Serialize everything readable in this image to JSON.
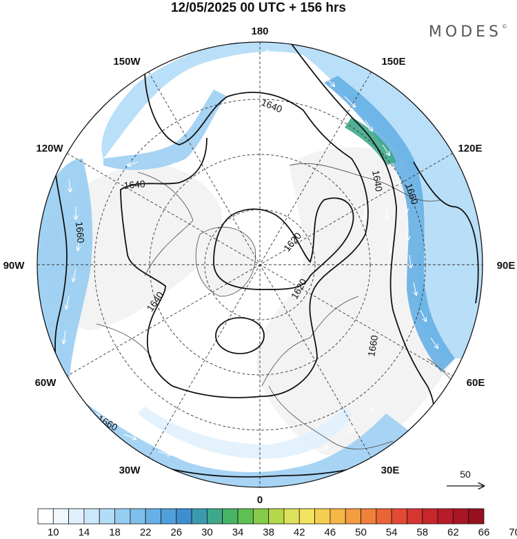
{
  "title": "12/05/2025  00 UTC  + 156 hrs",
  "brand": "MODES",
  "brand_mark": "©",
  "longitude_labels": [
    "180",
    "150E",
    "120E",
    "90E",
    "60E",
    "30E",
    "0",
    "30W",
    "60W",
    "90W",
    "120W",
    "150W"
  ],
  "contours": [
    {
      "label": "1640",
      "type": "upper-left"
    },
    {
      "label": "1640",
      "type": "left"
    },
    {
      "label": "1640",
      "type": "lower-left"
    },
    {
      "label": "1640",
      "type": "right"
    },
    {
      "label": "1660",
      "type": "left"
    },
    {
      "label": "1660",
      "type": "right"
    },
    {
      "label": "1660",
      "type": "lower-right"
    },
    {
      "label": "1660",
      "type": "bottom"
    },
    {
      "label": "1620",
      "type": "centre"
    },
    {
      "label": "1620",
      "type": "centre-low"
    }
  ],
  "reference_vector": "50",
  "colorbar": {
    "labels": [
      "10",
      "14",
      "18",
      "22",
      "26",
      "30",
      "34",
      "38",
      "42",
      "46",
      "50",
      "54",
      "58",
      "62",
      "66",
      "70"
    ],
    "colors": [
      "#ffffff",
      "#f0f8fe",
      "#e0f1fd",
      "#cce8fb",
      "#b3dcf7",
      "#98cdf2",
      "#7ebfec",
      "#66b0e5",
      "#4f9fdc",
      "#3f8ed1",
      "#3a9bb0",
      "#3fa88a",
      "#47b466",
      "#5ec050",
      "#86cc4a",
      "#b5d84a",
      "#dde05a",
      "#f3e35e",
      "#f5cf52",
      "#f5b748",
      "#f39c40",
      "#ef803a",
      "#ea6436",
      "#e24a33",
      "#d63530",
      "#c8262c",
      "#b81c28",
      "#a81524",
      "#961020"
    ]
  }
}
